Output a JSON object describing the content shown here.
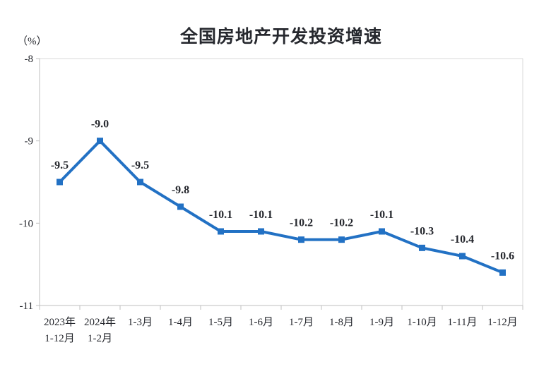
{
  "chart_data": {
    "type": "line",
    "title": "全国房地产开发投资增速",
    "unit_label": "（%）",
    "categories": [
      "2023年\n1-12月",
      "2024年\n1-2月",
      "1-3月",
      "1-4月",
      "1-5月",
      "1-6月",
      "1-7月",
      "1-8月",
      "1-9月",
      "1-10月",
      "1-11月",
      "1-12月"
    ],
    "series": [
      {
        "name": "全国房地产开发投资增速",
        "values": [
          -9.5,
          -9.0,
          -9.5,
          -9.8,
          -10.1,
          -10.1,
          -10.2,
          -10.2,
          -10.1,
          -10.3,
          -10.4,
          -10.6
        ],
        "data_labels": [
          "-9.5",
          "-9.0",
          "-9.5",
          "-9.8",
          "-10.1",
          "-10.1",
          "-10.2",
          "-10.2",
          "-10.1",
          "-10.3",
          "-10.4",
          "-10.6"
        ]
      }
    ],
    "ylabel": "（%）",
    "xlabel": "",
    "ylim": [
      -11,
      -8
    ],
    "y_ticks": [
      -8,
      -9,
      -10,
      -11
    ],
    "grid": false,
    "legend": "none",
    "colors": {
      "line": "#2271C4",
      "marker": "#2271C4",
      "text": "#26282e",
      "axis": "#bfbfbf",
      "plot_border": "#d9d9d9",
      "background": "#ffffff"
    }
  }
}
